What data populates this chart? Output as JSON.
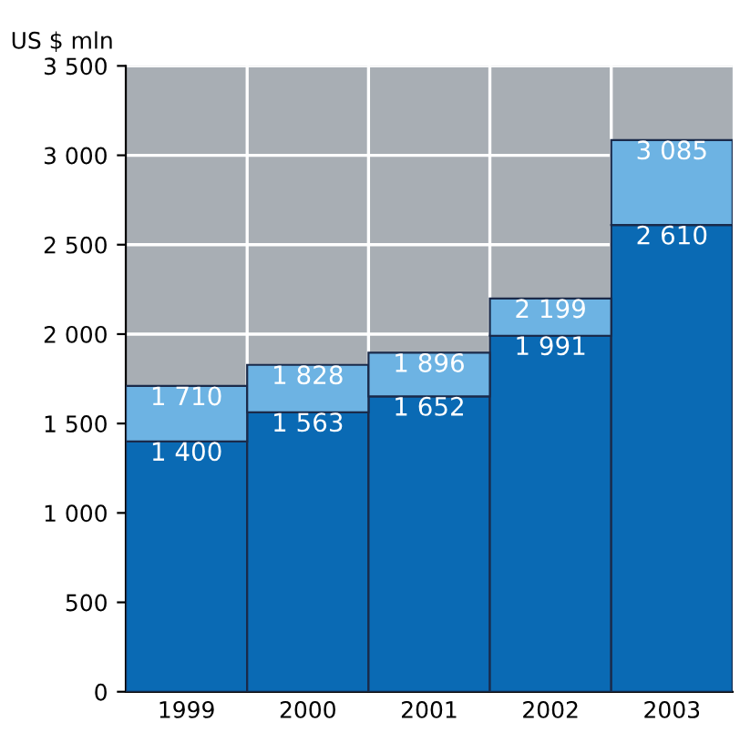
{
  "chart_data": {
    "type": "bar",
    "stacked": true,
    "ylabel": "US $ mln",
    "categories": [
      "1999",
      "2000",
      "2001",
      "2002",
      "2003"
    ],
    "series": [
      {
        "color": "#0a6ab4",
        "values": [
          1400,
          1563,
          1652,
          1991,
          2610
        ],
        "value_labels": [
          "1 400",
          "1 563",
          "1 652",
          "1 991",
          "2 610"
        ]
      },
      {
        "color": "#6db3e3",
        "values": [
          310,
          265,
          244,
          208,
          475
        ]
      }
    ],
    "totals": [
      "1 710",
      "1 828",
      "1 896",
      "2 199",
      "3 085"
    ],
    "ylim": [
      0,
      3500
    ],
    "yticks": [
      0,
      500,
      {
        "value": 1000,
        "label": "1 000"
      },
      {
        "value": 1500,
        "label": "1 500"
      },
      {
        "value": 2000,
        "label": "2 000"
      },
      {
        "value": 2500,
        "label": "2 500"
      },
      {
        "value": 3000,
        "label": "3 000"
      },
      {
        "value": 3500,
        "label": "3 500"
      }
    ],
    "grid": true
  }
}
